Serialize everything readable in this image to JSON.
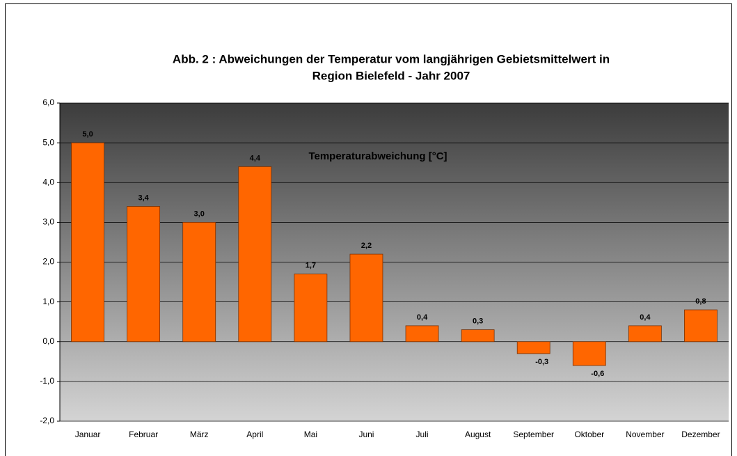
{
  "chart_data": {
    "type": "bar",
    "title": [
      "Abb. 2 : Abweichungen der Temperatur vom langjährigen Gebietsmittelwert in",
      "Region Bielefeld - Jahr 2007"
    ],
    "categories": [
      "Januar",
      "Februar",
      "März",
      "April",
      "Mai",
      "Juni",
      "Juli",
      "August",
      "September",
      "Oktober",
      "November",
      "Dezember"
    ],
    "series": [
      {
        "name": "Temperaturabweichung [°C]",
        "color": "#ff6600",
        "values": [
          5.0,
          3.4,
          3.0,
          4.4,
          1.7,
          2.2,
          0.4,
          0.3,
          -0.3,
          -0.6,
          0.4,
          0.8
        ],
        "value_labels": [
          "5,0",
          "3,4",
          "3,0",
          "4,4",
          "1,7",
          "2,2",
          "0,4",
          "0,3",
          "-0,3",
          "-0,6",
          "0,4",
          "0,8"
        ]
      }
    ],
    "ylim": [
      -2,
      6
    ],
    "yticks": [
      {
        "value": -2,
        "label": "-2,0"
      },
      {
        "value": -1,
        "label": "-1,0"
      },
      {
        "value": 0,
        "label": "0,0"
      },
      {
        "value": 1,
        "label": "1,0"
      },
      {
        "value": 2,
        "label": "2,0"
      },
      {
        "value": 3,
        "label": "3,0"
      },
      {
        "value": 4,
        "label": "4,0"
      },
      {
        "value": 5,
        "label": "5,0"
      },
      {
        "value": 6,
        "label": "6,0"
      }
    ],
    "grid": true
  }
}
